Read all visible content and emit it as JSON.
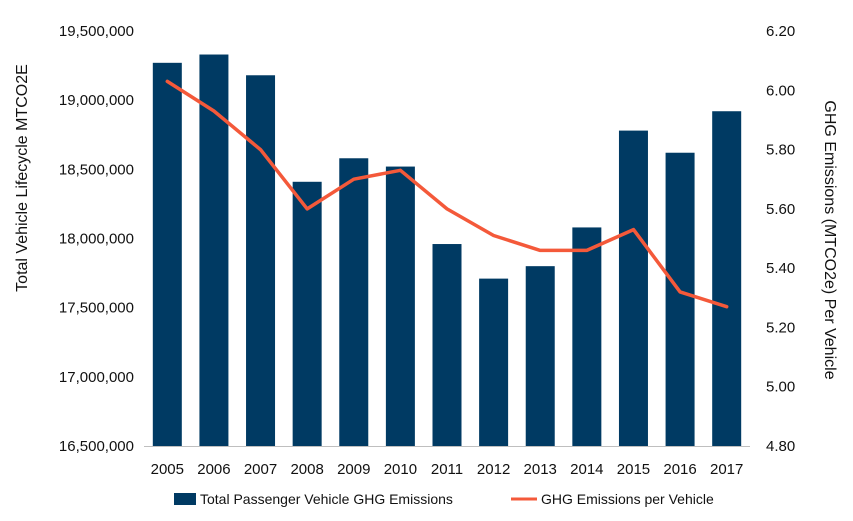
{
  "chart_data": {
    "type": "bar+line",
    "categories": [
      "2005",
      "2006",
      "2007",
      "2008",
      "2009",
      "2010",
      "2011",
      "2012",
      "2013",
      "2014",
      "2015",
      "2016",
      "2017"
    ],
    "series": [
      {
        "name": "Total Passenger Vehicle GHG Emissions",
        "type": "bar",
        "axis": "left",
        "color": "#003A63",
        "values": [
          19270000,
          19330000,
          19180000,
          18410000,
          18580000,
          18520000,
          17960000,
          17710000,
          17800000,
          18080000,
          18780000,
          18620000,
          18920000
        ]
      },
      {
        "name": "GHG Emissions per Vehicle",
        "type": "line",
        "axis": "right",
        "color": "#F4593A",
        "values": [
          6.03,
          5.93,
          5.8,
          5.6,
          5.7,
          5.73,
          5.6,
          5.51,
          5.46,
          5.46,
          5.53,
          5.32,
          5.27
        ]
      }
    ],
    "ylabel_left": "Total Vehicle Lifecycle MTCO2E",
    "ylabel_right": "GHG Emissions (MTCO2e) Per Vehicle",
    "ylim_left": [
      16500000,
      19500000
    ],
    "ylim_right": [
      4.8,
      6.2
    ],
    "yticks_left": [
      "19,500,000",
      "19,000,000",
      "18,500,000",
      "18,000,000",
      "17,500,000",
      "17,000,000",
      "16,500,000"
    ],
    "yticks_right": [
      "6.20",
      "6.00",
      "5.80",
      "5.60",
      "5.40",
      "5.20",
      "5.00",
      "4.80"
    ],
    "grid": false,
    "legend_position": "bottom"
  }
}
